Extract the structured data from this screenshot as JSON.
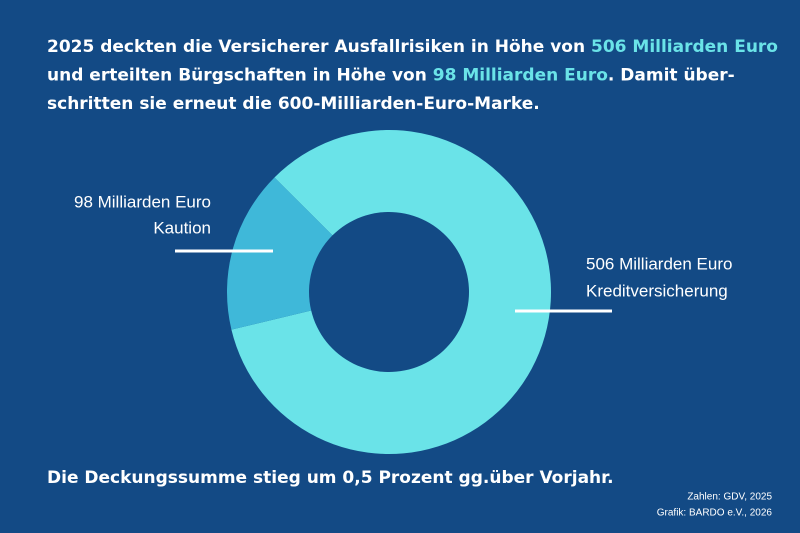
{
  "chart_data": {
    "type": "donut",
    "title_lines": [
      [
        {
          "text": "2025 deckten die Versicherer Ausfallrisiken in Höhe von "
        },
        {
          "text": "506 Milliarden Euro",
          "highlight": true
        }
      ],
      [
        {
          "text": "und erteilten Bürgschaften in Höhe von "
        },
        {
          "text": "98 Milliarden Euro",
          "highlight": true
        },
        {
          "text": ". Damit über-"
        }
      ],
      [
        {
          "text": "schritten sie erneut die 600-Milliarden-Euro-Marke."
        }
      ]
    ],
    "highlight_color": "#6ae3e8",
    "categories": [
      "Kreditversicherung",
      "Kaution"
    ],
    "values": [
      506,
      98
    ],
    "value_labels": [
      "506 Milliarden Euro",
      "98 Milliarden Euro"
    ],
    "colors": [
      "#6ae3e8",
      "#3fb8d9"
    ],
    "footnote": "Die Deckungssumme stieg um 0,5 Prozent gg.über Vorjahr.",
    "sources": [
      "Zahlen: GDV, 2025",
      "Grafik: BARDO e.V., 2026"
    ]
  }
}
